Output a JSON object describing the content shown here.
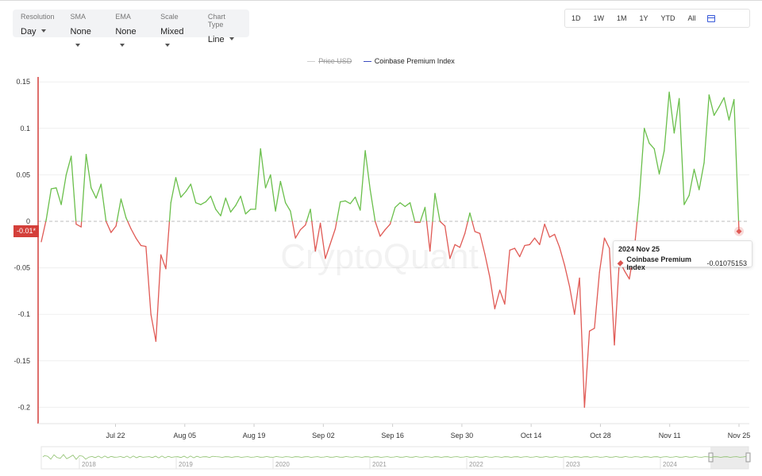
{
  "controls": [
    {
      "label": "Resolution",
      "value": "Day"
    },
    {
      "label": "SMA",
      "value": "None"
    },
    {
      "label": "EMA",
      "value": "None"
    },
    {
      "label": "Scale",
      "value": "Mixed"
    },
    {
      "label": "Chart Type",
      "value": "Line"
    }
  ],
  "ranges": [
    "1D",
    "1W",
    "1M",
    "1Y",
    "YTD",
    "All"
  ],
  "legend": {
    "price": {
      "label": "Price USD",
      "color": "#cfcfcf"
    },
    "index": {
      "label": "Coinbase Premium Index",
      "color": "#3b4cc0"
    }
  },
  "watermark": "CryptoQuant",
  "tooltip": {
    "date": "2024 Nov 25",
    "series": "Coinbase Premium Index",
    "value": "-0.01075153"
  },
  "y_cursor_label": "-0.01*",
  "colors": {
    "positive": "#6abf4b",
    "negative": "#e05a55",
    "cursor": "#d43f3a"
  },
  "navigator": {
    "years": [
      "2018",
      "2019",
      "2020",
      "2021",
      "2022",
      "2023",
      "2024"
    ]
  },
  "chart_data": {
    "type": "line",
    "series": [
      {
        "name": "Coinbase Premium Index",
        "start": "2024-07-07",
        "end": "2024-11-25",
        "values": [
          -0.022,
          0.002,
          0.035,
          0.036,
          0.018,
          0.05,
          0.07,
          -0.003,
          -0.006,
          0.072,
          0.036,
          0.025,
          0.04,
          0.0,
          -0.012,
          -0.005,
          0.024,
          0.004,
          -0.008,
          -0.018,
          -0.026,
          -0.027,
          -0.1,
          -0.129,
          -0.036,
          -0.051,
          0.02,
          0.047,
          0.026,
          0.032,
          0.04,
          0.02,
          0.018,
          0.021,
          0.027,
          0.013,
          0.006,
          0.025,
          0.01,
          0.017,
          0.027,
          0.008,
          0.013,
          0.013,
          0.078,
          0.036,
          0.05,
          0.011,
          0.043,
          0.02,
          0.011,
          -0.018,
          -0.009,
          -0.004,
          0.013,
          -0.032,
          -0.002,
          -0.04,
          -0.024,
          -0.008,
          0.021,
          0.022,
          0.019,
          0.026,
          0.012,
          0.076,
          0.034,
          0.0,
          -0.016,
          -0.009,
          -0.003,
          0.015,
          0.02,
          0.016,
          0.02,
          -0.001,
          -0.001,
          0.015,
          -0.032,
          0.03,
          0.0,
          -0.005,
          -0.04,
          -0.025,
          -0.028,
          -0.013,
          0.009,
          -0.011,
          -0.013,
          -0.035,
          -0.06,
          -0.094,
          -0.074,
          -0.089,
          -0.031,
          -0.029,
          -0.038,
          -0.026,
          -0.025,
          -0.018,
          -0.025,
          -0.003,
          -0.017,
          -0.014,
          -0.028,
          -0.047,
          -0.07,
          -0.1,
          -0.061,
          -0.2,
          -0.118,
          -0.115,
          -0.055,
          -0.018,
          -0.029,
          -0.133,
          -0.042,
          -0.053,
          -0.062,
          -0.03,
          0.025,
          0.1,
          0.084,
          0.078,
          0.051,
          0.076,
          0.139,
          0.095,
          0.132,
          0.018,
          0.028,
          0.056,
          0.034,
          0.063,
          0.136,
          0.114,
          0.123,
          0.133,
          0.109,
          0.131,
          -0.01075153
        ]
      }
    ],
    "x_ticks": [
      "Jul 22",
      "Aug 05",
      "Aug 19",
      "Sep 02",
      "Sep 16",
      "Sep 30",
      "Oct 14",
      "Oct 28",
      "Nov 11",
      "Nov 25"
    ],
    "y_ticks": [
      "0.15",
      "0.1",
      "0.05",
      "0",
      "-0.05",
      "-0.1",
      "-0.15",
      "-0.2"
    ],
    "ylim": [
      -0.22,
      0.15
    ],
    "grid": "horizontal",
    "legend_position": "top-center",
    "zero_line": "dashed"
  }
}
